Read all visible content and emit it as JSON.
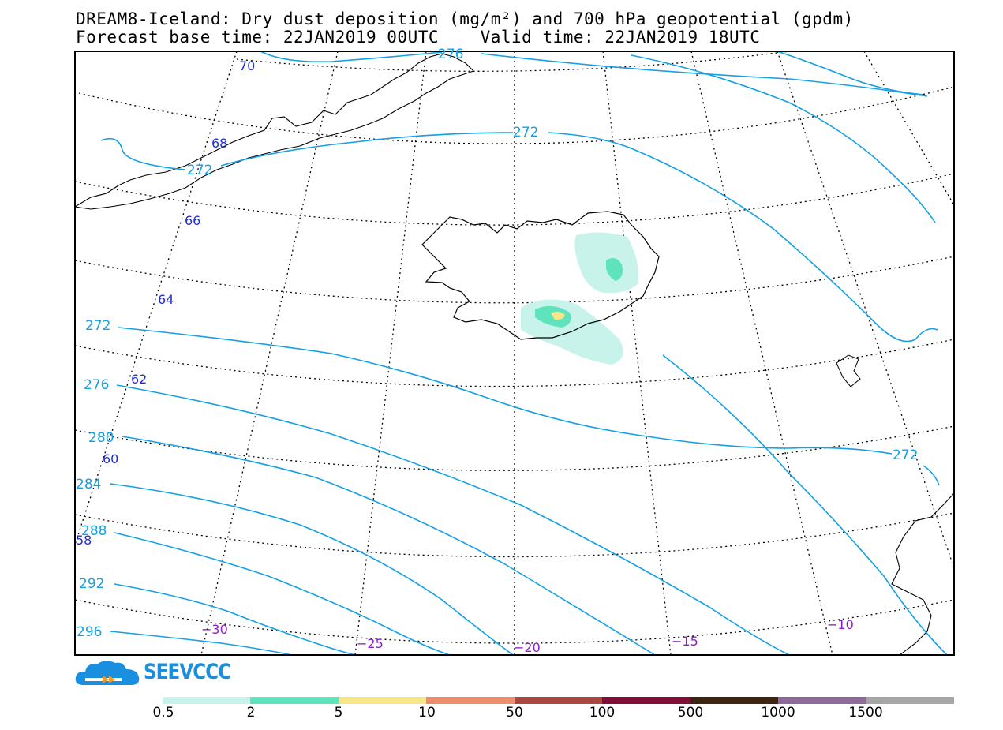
{
  "title_line1": "DREAM8-Iceland: Dry dust deposition (mg/m²) and 700 hPa geopotential (gpdm)",
  "title_line2": "Forecast base time: 22JAN2019 00UTC    Valid time: 22JAN2019 18UTC",
  "logo_text": "SEEVCCC",
  "lat_labels": [
    "70",
    "68",
    "66",
    "64",
    "62",
    "60",
    "58"
  ],
  "lon_labels": [
    "−30",
    "−25",
    "−20",
    "−15",
    "−10"
  ],
  "geopotential_labels": [
    "276",
    "272",
    "272",
    "272",
    "276",
    "280",
    "284",
    "288",
    "292",
    "296",
    "272"
  ],
  "legend": {
    "labels": [
      "0.5",
      "2",
      "5",
      "10",
      "50",
      "100",
      "500",
      "1000",
      "1500"
    ],
    "colors": [
      "#c8f3eb",
      "#5ee3bd",
      "#f8e68a",
      "#eb8e6c",
      "#a94843",
      "#7f0f37",
      "#3e2512",
      "#8c6b99",
      "#a6a6a6"
    ]
  },
  "colors": {
    "geopotential": "#14a0e6",
    "lat_label": "#1f2fcf",
    "lon_label": "#8a1fc4"
  }
}
